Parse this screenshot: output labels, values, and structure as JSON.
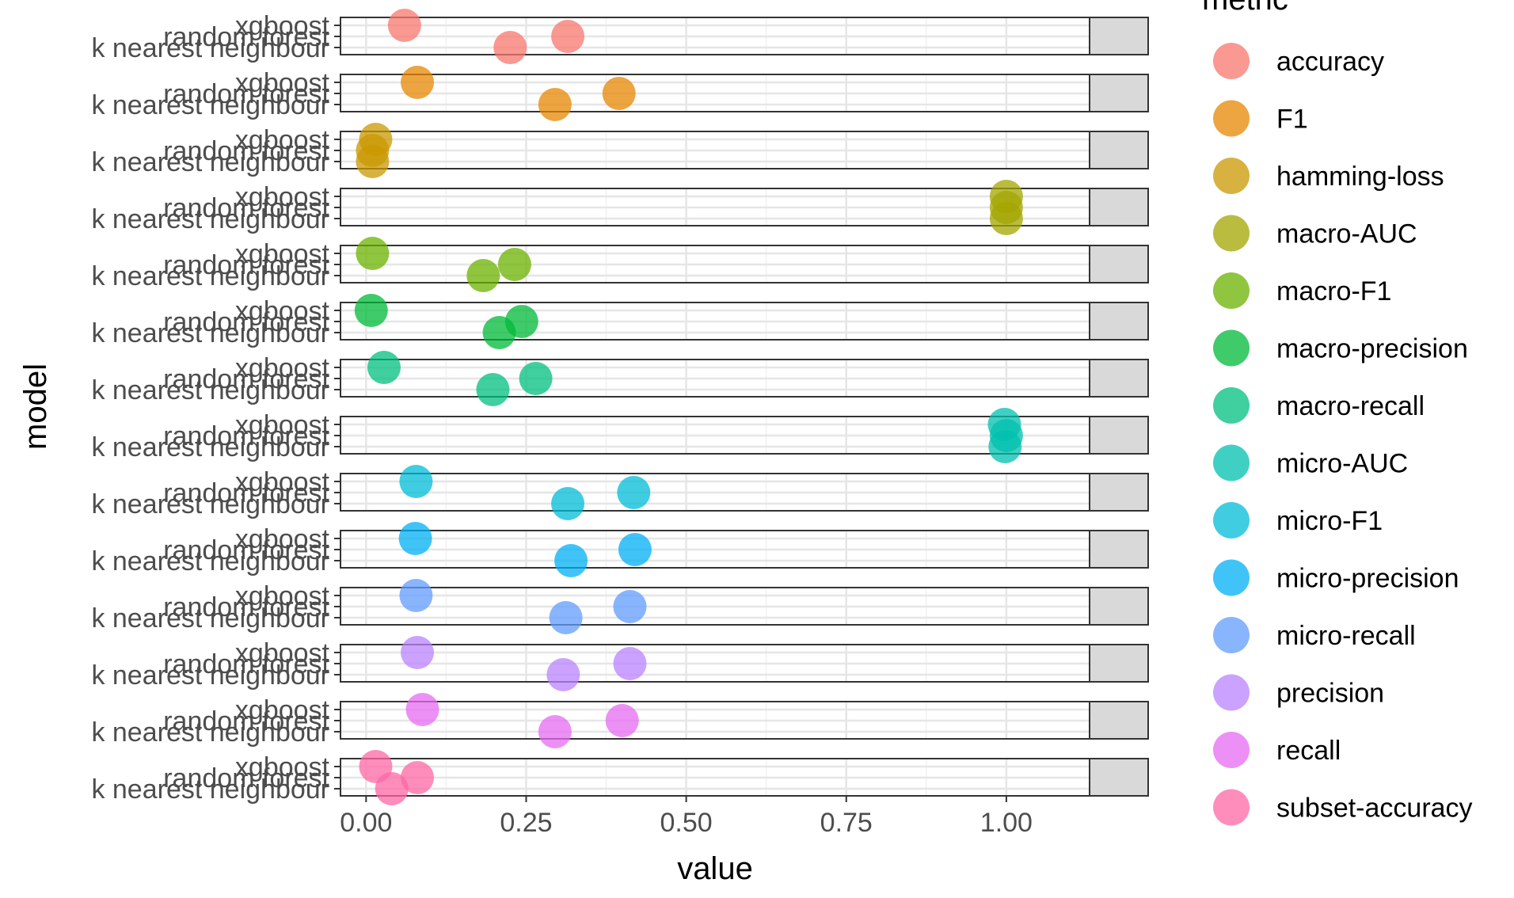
{
  "chart_data": {
    "type": "scatter",
    "facet_layout": "rows",
    "xlabel": "value",
    "ylabel": "model",
    "xlim": [
      -0.04,
      1.13
    ],
    "x_ticks": [
      "0.00",
      "0.25",
      "0.50",
      "0.75",
      "1.00"
    ],
    "x_tick_values": [
      0,
      0.25,
      0.5,
      0.75,
      1.0
    ],
    "models": [
      "xgboost",
      "random forest",
      "k nearest neighbour"
    ],
    "legend_title": "metric",
    "legend_position": "right",
    "grid": true,
    "panels": [
      {
        "metric": "accuracy",
        "strip": "accuracy",
        "color": "#F8766D",
        "values": {
          "xgboost": 0.06,
          "random forest": 0.315,
          "k nearest neighbour": 0.225
        }
      },
      {
        "metric": "F1",
        "strip": "F1",
        "color": "#E58700",
        "values": {
          "xgboost": 0.08,
          "random forest": 0.395,
          "k nearest neighbour": 0.295
        }
      },
      {
        "metric": "hamming-loss",
        "strip": "hamming-loss",
        "color": "#C99800",
        "values": {
          "xgboost": 0.015,
          "random forest": 0.01,
          "k nearest neighbour": 0.01
        }
      },
      {
        "metric": "macro-AUC",
        "strip": "macro-AUC",
        "color": "#A3A500",
        "values": {
          "xgboost": 1.0,
          "random forest": 1.0,
          "k nearest neighbour": 1.0
        }
      },
      {
        "metric": "macro-F1",
        "strip": "macro-F1",
        "color": "#6BB100",
        "values": {
          "xgboost": 0.01,
          "random forest": 0.232,
          "k nearest neighbour": 0.183
        }
      },
      {
        "metric": "macro-precision",
        "strip": "macro-precision",
        "color": "#00BA38",
        "values": {
          "xgboost": 0.008,
          "random forest": 0.243,
          "k nearest neighbour": 0.208
        }
      },
      {
        "metric": "macro-recall",
        "strip": "macro-recall",
        "color": "#00BF7D",
        "values": {
          "xgboost": 0.028,
          "random forest": 0.265,
          "k nearest neighbour": 0.198
        }
      },
      {
        "metric": "micro-AUC",
        "strip": "micro-AUC",
        "color": "#00C0AF",
        "values": {
          "xgboost": 0.997,
          "random forest": 1.0,
          "k nearest neighbour": 0.998
        }
      },
      {
        "metric": "micro-F1",
        "strip": "micro-F1",
        "color": "#00BCD8",
        "values": {
          "xgboost": 0.078,
          "random forest": 0.418,
          "k nearest neighbour": 0.315
        }
      },
      {
        "metric": "micro-precision",
        "strip": "micro-precision",
        "color": "#00B0F6",
        "values": {
          "xgboost": 0.077,
          "random forest": 0.42,
          "k nearest neighbour": 0.32
        }
      },
      {
        "metric": "micro-recall",
        "strip": "micro-recall",
        "color": "#619CFF",
        "values": {
          "xgboost": 0.078,
          "random forest": 0.412,
          "k nearest neighbour": 0.312
        }
      },
      {
        "metric": "precision",
        "strip": "precision",
        "color": "#B983FF",
        "values": {
          "xgboost": 0.08,
          "random forest": 0.412,
          "k nearest neighbour": 0.308
        }
      },
      {
        "metric": "recall",
        "strip": "recall",
        "color": "#E76BF3",
        "values": {
          "xgboost": 0.088,
          "random forest": 0.4,
          "k nearest neighbour": 0.295
        }
      },
      {
        "metric": "subset-accuracy",
        "strip": "subset-accuracy",
        "color": "#FF67A4",
        "values": {
          "xgboost": 0.015,
          "random forest": 0.08,
          "k nearest neighbour": 0.04
        }
      }
    ]
  }
}
